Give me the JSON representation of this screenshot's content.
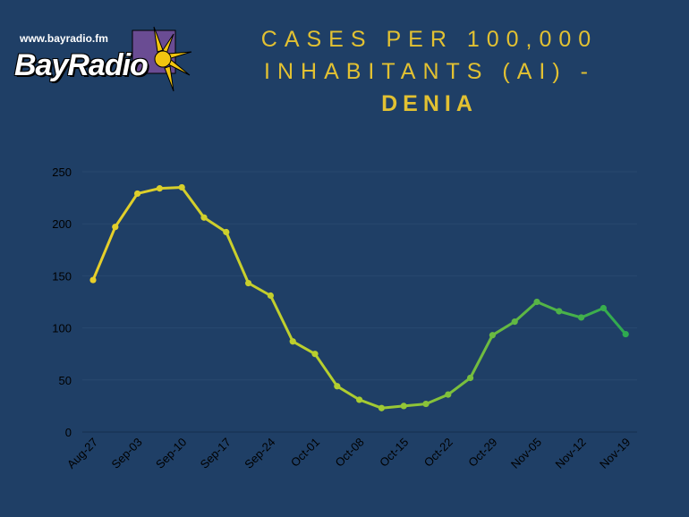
{
  "logo": {
    "url": "www.bayradio.fm",
    "wordmark": "BayRadio"
  },
  "title": {
    "line1": "CASES PER 100,000",
    "line2": "INHABITANTS (AI) -",
    "city": "DENIA"
  },
  "chart_data": {
    "type": "line",
    "title": "CASES PER 100,000 INHABITANTS (AI) - DENIA",
    "xlabel": "",
    "ylabel": "",
    "ylim": [
      0,
      250
    ],
    "yticks": [
      0,
      50,
      100,
      150,
      200,
      250
    ],
    "grid": true,
    "x_tick_labels": [
      "Aug-27",
      "Sep-03",
      "Sep-10",
      "Sep-17",
      "Sep-24",
      "Oct-01",
      "Oct-08",
      "Oct-15",
      "Oct-22",
      "Oct-29",
      "Nov-05",
      "Nov-12",
      "Nov-19"
    ],
    "series": [
      {
        "name": "Denia",
        "values": [
          146,
          197,
          229,
          234,
          235,
          206,
          192,
          143,
          131,
          87,
          75,
          44,
          31,
          23,
          25,
          27,
          36,
          52,
          93,
          106,
          125,
          116,
          110,
          119,
          94
        ]
      }
    ],
    "gradient_colors": [
      "#e8cf2a",
      "#b5cf2e",
      "#2eaa50"
    ]
  }
}
